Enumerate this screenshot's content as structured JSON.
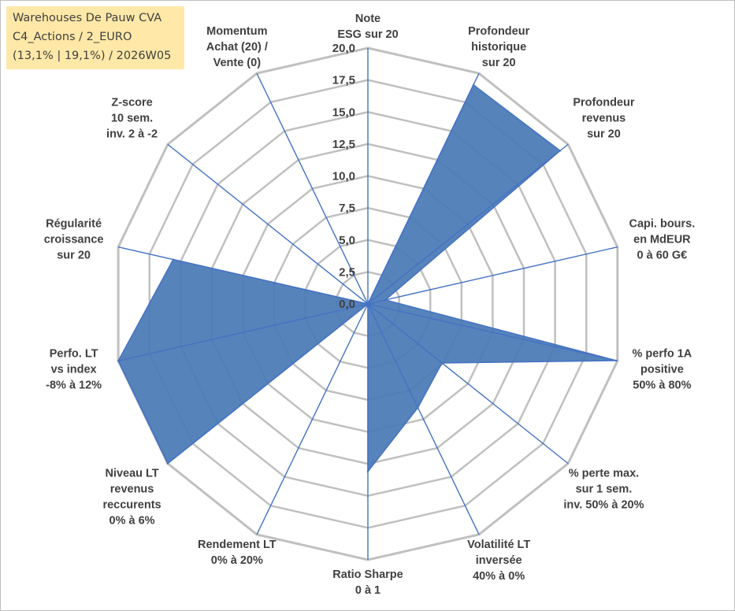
{
  "info_box": {
    "line1": "Warehouses De Pauw CVA",
    "line2": "C4_Actions / 2_EURO",
    "line3": "(13,1% | 19,1%) / 2026W05"
  },
  "colors": {
    "series_fill": "#4a7ab6",
    "series_stroke": "#4472c4",
    "axis_line": "#4472c4",
    "grid": "#c0c0c0",
    "text": "#404040",
    "info_bg": "#ffe8a8"
  },
  "chart_data": {
    "type": "radar",
    "r_min": 0,
    "r_max": 20,
    "r_step": 2.5,
    "tick_labels": [
      "0,0",
      "2,5",
      "5,0",
      "7,5",
      "10,0",
      "12,5",
      "15,0",
      "17,5",
      "20,0"
    ],
    "categories": [
      [
        "Note",
        "ESG sur 20"
      ],
      [
        "Profondeur",
        "historique",
        "sur 20"
      ],
      [
        "Profondeur",
        "revenus",
        "sur 20"
      ],
      [
        "Capi. bours.",
        "en MdEUR",
        "0 à 60 G€"
      ],
      [
        "% perfo 1A",
        "positive",
        "50% à 80%"
      ],
      [
        "% perte max.",
        "sur 1 sem.",
        "inv. 50% à 20%"
      ],
      [
        "Volatilité LT",
        "inversée",
        "40% à 0%"
      ],
      [
        "Ratio Sharpe",
        "0 à 1"
      ],
      [
        "Rendement LT",
        "0% à 20%"
      ],
      [
        "Niveau LT",
        "revenus",
        "reccurents",
        "0% à 6%"
      ],
      [
        "Perfo. LT",
        "vs index",
        "-8% à 12%"
      ],
      [
        "Régularité",
        "croissance",
        "sur 20"
      ],
      [
        "Z-score",
        "10 sem.",
        "inv. 2 à -2"
      ],
      [
        "Momentum",
        "Achat (20) /",
        "Vente (0)"
      ]
    ],
    "series": [
      {
        "name": "Warehouses De Pauw CVA",
        "values": [
          0,
          19.0,
          19.2,
          1.4,
          19.9,
          7.4,
          9.0,
          13.1,
          0,
          20,
          20,
          15.6,
          0,
          0
        ]
      }
    ]
  }
}
